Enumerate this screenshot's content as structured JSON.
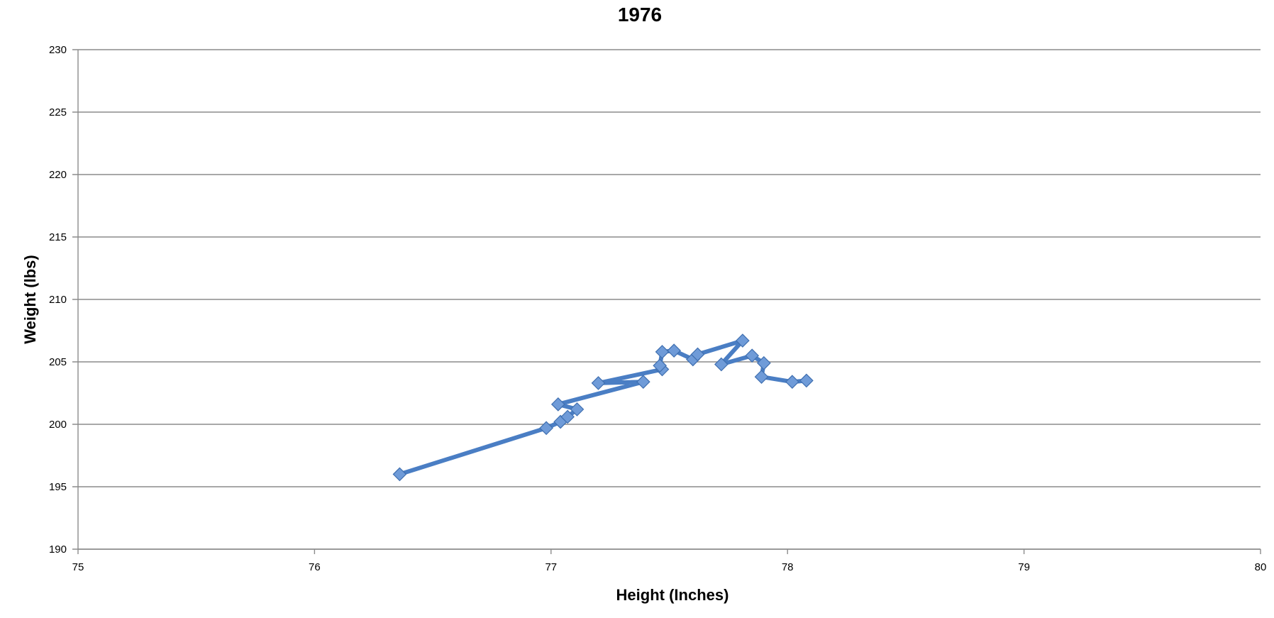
{
  "chart_data": {
    "type": "line",
    "title": "1976",
    "xlabel": "Height (Inches)",
    "ylabel": "Weight (lbs)",
    "xlim": [
      75,
      80
    ],
    "ylim": [
      190,
      230
    ],
    "x_ticks": [
      "75",
      "76",
      "77",
      "78",
      "79",
      "80"
    ],
    "y_ticks": [
      "190",
      "195",
      "200",
      "205",
      "210",
      "215",
      "220",
      "225",
      "230"
    ],
    "grid": "horizontal",
    "legend": "none",
    "series": [
      {
        "color": "#4A7EC4",
        "marker_fill": "#6F9BD8",
        "marker": "diamond",
        "points": [
          {
            "x": 76.36,
            "y": 196.0
          },
          {
            "x": 76.98,
            "y": 199.7
          },
          {
            "x": 77.04,
            "y": 200.2
          },
          {
            "x": 77.07,
            "y": 200.6
          },
          {
            "x": 77.11,
            "y": 201.2
          },
          {
            "x": 77.03,
            "y": 201.6
          },
          {
            "x": 77.39,
            "y": 203.4
          },
          {
            "x": 77.2,
            "y": 203.3
          },
          {
            "x": 77.47,
            "y": 204.4
          },
          {
            "x": 77.46,
            "y": 204.7
          },
          {
            "x": 77.47,
            "y": 205.8
          },
          {
            "x": 77.52,
            "y": 205.9
          },
          {
            "x": 77.6,
            "y": 205.2
          },
          {
            "x": 77.62,
            "y": 205.6
          },
          {
            "x": 77.81,
            "y": 206.7
          },
          {
            "x": 77.72,
            "y": 204.8
          },
          {
            "x": 77.85,
            "y": 205.5
          },
          {
            "x": 77.9,
            "y": 204.9
          },
          {
            "x": 77.89,
            "y": 203.8
          },
          {
            "x": 78.02,
            "y": 203.4
          },
          {
            "x": 78.08,
            "y": 203.5
          }
        ]
      }
    ]
  }
}
